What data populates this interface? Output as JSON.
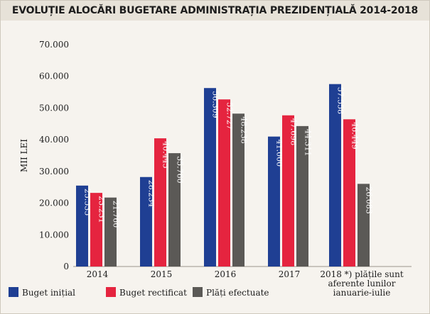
{
  "title": "EVOLUȚIE ALOCĂRI BUGETARE ADMINISTRAȚIA PREZIDENȚIALĂ 2014-2018",
  "chart_data": {
    "type": "bar",
    "title": "EVOLUȚIE ALOCĂRI BUGETARE ADMINISTRAȚIA PREZIDENȚIALĂ 2014-2018",
    "ylabel": "MII LEI",
    "xlabel": "",
    "ylim": [
      0,
      70000
    ],
    "yticks": [
      0,
      10000,
      20000,
      30000,
      40000,
      50000,
      60000,
      70000
    ],
    "ytick_labels": [
      "0",
      "10.000",
      "20.000",
      "30.000",
      "40.000",
      "50.000",
      "60.000",
      "70.000"
    ],
    "categories": [
      "2014",
      "2015",
      "2016",
      "2017",
      "2018 *) plățile sunt aferente lunilor ianuarie-iulie"
    ],
    "category_label_lines": [
      [
        "2014"
      ],
      [
        "2015"
      ],
      [
        "2016"
      ],
      [
        "2017"
      ],
      [
        "2018 *) plățile sunt",
        "aferente lunilor",
        "ianuarie-iulie"
      ]
    ],
    "series": [
      {
        "name": "Buget inițial",
        "color": "#1f3f93",
        "values": [
          25535,
          28234,
          56309,
          41000,
          57558
        ],
        "labels": [
          "25.535",
          "28.234",
          "56.309",
          "41.000",
          "57.558"
        ]
      },
      {
        "name": "Buget rectificat",
        "color": "#e5243f",
        "values": [
          23231,
          40445,
          52727,
          47698,
          46449
        ],
        "labels": [
          "23.231",
          "40.445",
          "52.727",
          "47.698",
          "46.449"
        ]
      },
      {
        "name": "Plăți efectuate",
        "color": "#5b5956",
        "values": [
          21760,
          35760,
          48238,
          44311,
          26083
        ],
        "labels": [
          "21.760",
          "35.760",
          "48.238",
          "44.311",
          "26.083"
        ]
      }
    ],
    "grid": false,
    "legend_position": "bottom-left",
    "data_label_orientation": "vertical"
  }
}
